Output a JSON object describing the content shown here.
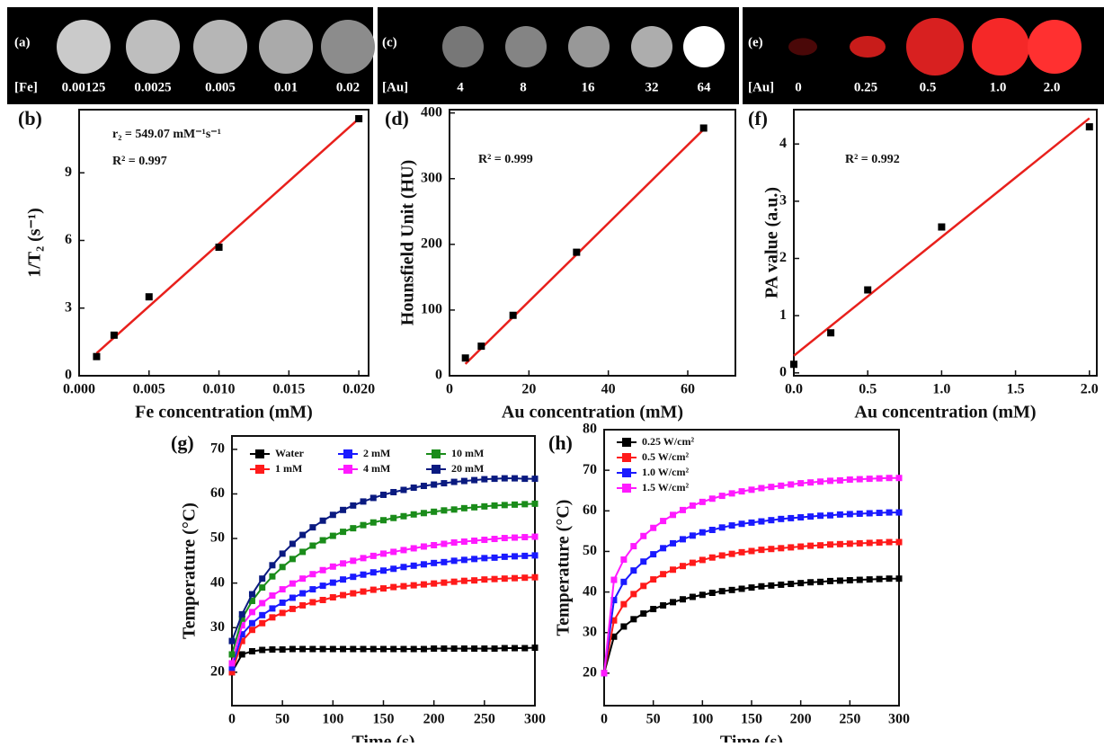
{
  "image_panels": [
    {
      "panel": "(a)",
      "element": "[Fe]",
      "labels": [
        "0.00125",
        "0.0025",
        "0.005",
        "0.01",
        "0.02"
      ]
    },
    {
      "panel": "(c)",
      "element": "[Au]",
      "labels": [
        "4",
        "8",
        "16",
        "32",
        "64"
      ]
    },
    {
      "panel": "(e)",
      "element": "[Au]",
      "labels": [
        "0",
        "0.25",
        "0.5",
        "1.0",
        "2.0"
      ]
    }
  ],
  "chart_data": [
    {
      "panel": "(b)",
      "type": "scatter",
      "x_label": "Fe concentration (mM)",
      "y_label": "1/T₂ (s⁻¹)",
      "annotations": [
        "r₂ = 549.07 mM⁻¹s⁻¹",
        "R² = 0.997"
      ],
      "x": [
        0.00125,
        0.0025,
        0.005,
        0.01,
        0.02
      ],
      "values": [
        0.85,
        1.8,
        3.5,
        5.7,
        11.4
      ],
      "color": "#000000",
      "fit_line": {
        "color": "#e8201c",
        "x": [
          0.00125,
          0.02
        ],
        "values": [
          1.0,
          11.4
        ]
      },
      "xlim": [
        0,
        0.0207
      ],
      "ylim": [
        0,
        11.8
      ],
      "xticks": [
        {
          "value": 0,
          "label": "0.000"
        },
        {
          "value": 0.005,
          "label": "0.005"
        },
        {
          "value": 0.01,
          "label": "0.010"
        },
        {
          "value": 0.015,
          "label": "0.015"
        },
        {
          "value": 0.02,
          "label": "0.020"
        }
      ],
      "yticks": [
        0,
        3,
        6,
        9
      ]
    },
    {
      "panel": "(d)",
      "type": "scatter",
      "x_label": "Au concentration (mM)",
      "y_label": "Hounsfield Unit (HU)",
      "annotations": [
        "R² = 0.999"
      ],
      "x": [
        4,
        8,
        16,
        32,
        64
      ],
      "values": [
        27,
        45,
        92,
        188,
        377
      ],
      "color": "#000000",
      "fit_line": {
        "color": "#e8201c",
        "x": [
          4,
          64
        ],
        "values": [
          18,
          375
        ]
      },
      "xlim": [
        0,
        72
      ],
      "ylim": [
        0,
        405
      ],
      "xticks": [
        0,
        20,
        40,
        60
      ],
      "yticks": [
        0,
        100,
        200,
        300,
        400
      ]
    },
    {
      "panel": "(f)",
      "type": "scatter",
      "x_label": "Au concentration (mM)",
      "y_label": "PA value (a.u.)",
      "annotations": [
        "R² = 0.992"
      ],
      "x": [
        0,
        0.25,
        0.5,
        1.0,
        2.0
      ],
      "values": [
        0.15,
        0.7,
        1.45,
        2.55,
        4.3
      ],
      "color": "#000000",
      "fit_line": {
        "color": "#e8201c",
        "x": [
          0,
          2.0
        ],
        "values": [
          0.3,
          4.45
        ]
      },
      "xlim": [
        0,
        2.05
      ],
      "ylim": [
        -0.05,
        4.6
      ],
      "xticks": [
        {
          "value": 0,
          "label": "0.0"
        },
        {
          "value": 0.5,
          "label": "0.5"
        },
        {
          "value": 1,
          "label": "1.0"
        },
        {
          "value": 1.5,
          "label": "1.5"
        },
        {
          "value": 2,
          "label": "2.0"
        }
      ],
      "yticks": [
        0,
        1,
        2,
        3,
        4
      ]
    },
    {
      "panel": "(g)",
      "type": "line",
      "x_label": "Time (s)",
      "y_label": "Temperature (°C)",
      "legend": "top-left",
      "x": [
        0,
        10,
        20,
        30,
        40,
        50,
        60,
        70,
        80,
        90,
        100,
        110,
        120,
        130,
        140,
        150,
        160,
        170,
        180,
        190,
        200,
        210,
        220,
        230,
        240,
        250,
        260,
        270,
        280,
        290,
        300
      ],
      "series": [
        {
          "name": "Water",
          "color": "#000000",
          "values": [
            20,
            24,
            24.7,
            25,
            25.1,
            25.1,
            25.2,
            25.2,
            25.2,
            25.2,
            25.2,
            25.2,
            25.2,
            25.2,
            25.2,
            25.2,
            25.2,
            25.2,
            25.2,
            25.2,
            25.3,
            25.3,
            25.3,
            25.3,
            25.3,
            25.3,
            25.3,
            25.4,
            25.4,
            25.4,
            25.5
          ]
        },
        {
          "name": "1 mM",
          "color": "#ff1a1a",
          "values": [
            20,
            27,
            29.5,
            31,
            32.3,
            33.3,
            34.2,
            35,
            35.7,
            36.2,
            36.8,
            37.3,
            37.7,
            38.1,
            38.5,
            38.8,
            39.1,
            39.3,
            39.5,
            39.7,
            39.9,
            40.1,
            40.3,
            40.5,
            40.6,
            40.8,
            40.9,
            41.0,
            41.1,
            41.2,
            41.3
          ]
        },
        {
          "name": "2 mM",
          "color": "#1a1aff",
          "values": [
            21,
            28.5,
            31,
            32.8,
            34.3,
            35.6,
            36.7,
            37.7,
            38.6,
            39.4,
            40.1,
            40.8,
            41.4,
            41.9,
            42.4,
            42.8,
            43.2,
            43.6,
            43.9,
            44.2,
            44.5,
            44.7,
            45.0,
            45.2,
            45.4,
            45.6,
            45.7,
            45.9,
            46.0,
            46.1,
            46.2
          ]
        },
        {
          "name": "4 mM",
          "color": "#ff1aff",
          "values": [
            22,
            30.5,
            33.5,
            35.5,
            37.2,
            38.6,
            39.9,
            41,
            42,
            42.9,
            43.7,
            44.4,
            45,
            45.6,
            46.1,
            46.6,
            47,
            47.4,
            47.8,
            48.2,
            48.5,
            48.8,
            49.1,
            49.3,
            49.5,
            49.7,
            49.9,
            50.1,
            50.2,
            50.3,
            50.4
          ]
        },
        {
          "name": "10 mM",
          "color": "#1a8c1a",
          "values": [
            24,
            32,
            36,
            39,
            41.5,
            43.6,
            45.4,
            47,
            48.4,
            49.6,
            50.6,
            51.5,
            52.3,
            53,
            53.6,
            54.1,
            54.6,
            55,
            55.4,
            55.7,
            56,
            56.3,
            56.5,
            56.8,
            57,
            57.2,
            57.4,
            57.5,
            57.6,
            57.7,
            57.8
          ]
        },
        {
          "name": "20 mM",
          "color": "#0a1a80",
          "values": [
            27,
            33,
            37.5,
            41,
            44,
            46.6,
            48.8,
            50.8,
            52.5,
            54,
            55.3,
            56.4,
            57.4,
            58.3,
            59.1,
            59.8,
            60.4,
            60.9,
            61.4,
            61.8,
            62.1,
            62.4,
            62.7,
            62.9,
            63.1,
            63.3,
            63.4,
            63.5,
            63.5,
            63.4,
            63.4
          ]
        }
      ],
      "xlim": [
        0,
        300
      ],
      "ylim": [
        12.5,
        73
      ],
      "xticks": [
        0,
        50,
        100,
        150,
        200,
        250,
        300
      ],
      "yticks": [
        20,
        30,
        40,
        50,
        60,
        70
      ]
    },
    {
      "panel": "(h)",
      "type": "line",
      "x_label": "Time (s)",
      "y_label": "Temperature (°C)",
      "legend": "top-left",
      "x": [
        0,
        10,
        20,
        30,
        40,
        50,
        60,
        70,
        80,
        90,
        100,
        110,
        120,
        130,
        140,
        150,
        160,
        170,
        180,
        190,
        200,
        210,
        220,
        230,
        240,
        250,
        260,
        270,
        280,
        290,
        300
      ],
      "series": [
        {
          "name": "0.25 W/cm²",
          "color": "#000000",
          "values": [
            20,
            29,
            31.5,
            33.3,
            34.7,
            35.8,
            36.7,
            37.5,
            38.2,
            38.8,
            39.3,
            39.8,
            40.2,
            40.5,
            40.8,
            41.1,
            41.4,
            41.6,
            41.8,
            42,
            42.2,
            42.4,
            42.5,
            42.7,
            42.8,
            42.9,
            43,
            43.1,
            43.2,
            43.3,
            43.3
          ]
        },
        {
          "name": "0.5 W/cm²",
          "color": "#ff1a1a",
          "values": [
            20,
            33,
            37,
            39.5,
            41.5,
            43.1,
            44.4,
            45.5,
            46.4,
            47.2,
            47.9,
            48.5,
            49,
            49.4,
            49.8,
            50.1,
            50.4,
            50.6,
            50.8,
            51,
            51.2,
            51.4,
            51.5,
            51.7,
            51.8,
            51.9,
            52,
            52.1,
            52.2,
            52.3,
            52.3
          ]
        },
        {
          "name": "1.0 W/cm²",
          "color": "#1a1aff",
          "values": [
            20,
            38,
            42.5,
            45.3,
            47.5,
            49.3,
            50.8,
            52,
            53,
            53.9,
            54.7,
            55.3,
            55.9,
            56.4,
            56.8,
            57.1,
            57.4,
            57.7,
            58,
            58.2,
            58.4,
            58.6,
            58.8,
            58.9,
            59.1,
            59.2,
            59.3,
            59.4,
            59.5,
            59.6,
            59.6
          ]
        },
        {
          "name": "1.5 W/cm²",
          "color": "#ff1aff",
          "values": [
            20,
            43,
            48,
            51.3,
            53.8,
            55.8,
            57.5,
            59,
            60.2,
            61.3,
            62.2,
            63,
            63.7,
            64.3,
            64.8,
            65.2,
            65.6,
            65.9,
            66.2,
            66.5,
            66.8,
            67,
            67.2,
            67.4,
            67.5,
            67.7,
            67.8,
            67.9,
            68,
            68.1,
            68.1
          ]
        }
      ],
      "xlim": [
        0,
        300
      ],
      "ylim": [
        12,
        80
      ],
      "xticks": [
        0,
        50,
        100,
        150,
        200,
        250,
        300
      ],
      "yticks": [
        20,
        30,
        40,
        50,
        60,
        70,
        80
      ]
    }
  ]
}
